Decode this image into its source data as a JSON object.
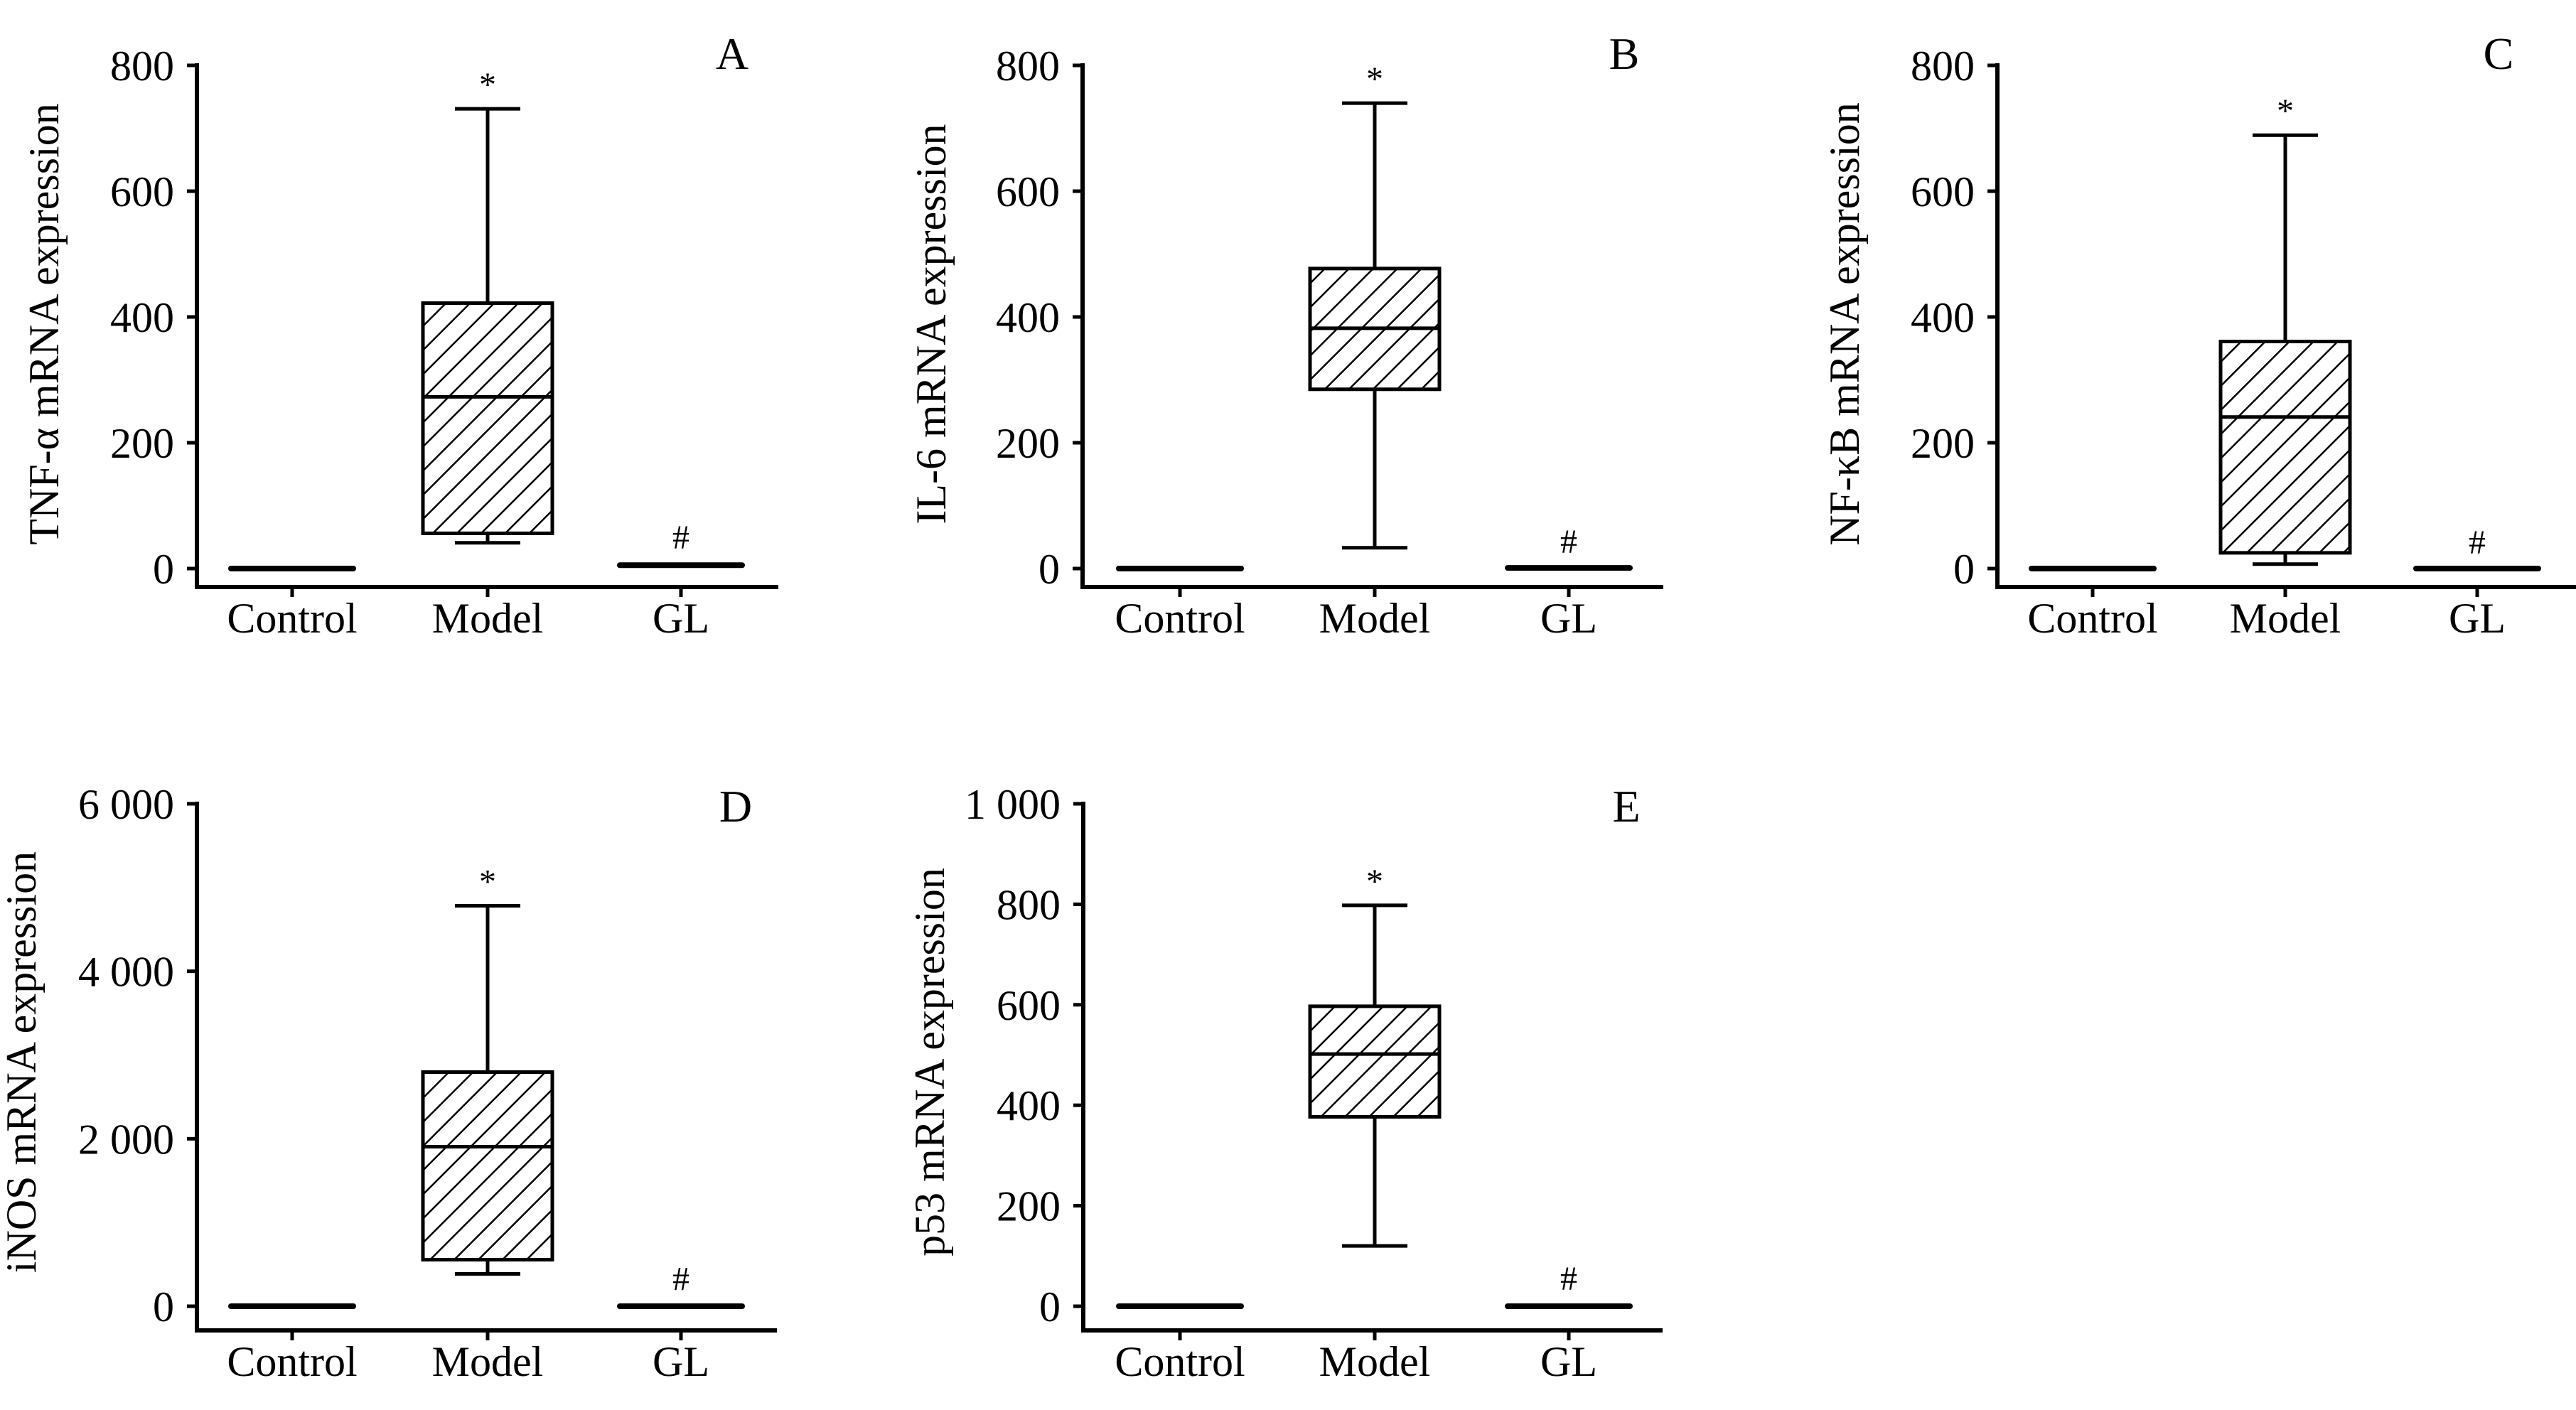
{
  "figure": {
    "colors": {
      "ink": "#000000",
      "background": "#ffffff"
    }
  },
  "chart_data": [
    {
      "type": "box",
      "panel": "A",
      "ylabel": "TNF-α mRNA expression",
      "xlabel": "",
      "categories": [
        "Control",
        "Model",
        "GL"
      ],
      "ylim": [
        0,
        800
      ],
      "yticks": [
        0,
        200,
        400,
        600,
        800
      ],
      "ytick_labels": [
        "0",
        "200",
        "400",
        "600",
        "800"
      ],
      "grid": false,
      "boxes": [
        {
          "category": "Control",
          "min": 0,
          "q1": 0,
          "median": 0,
          "q3": 1,
          "max": 1,
          "pattern": "none",
          "annotation": ""
        },
        {
          "category": "Model",
          "min": 41,
          "q1": 56,
          "median": 273,
          "q3": 422,
          "max": 731,
          "pattern": "hatched",
          "annotation": "*"
        },
        {
          "category": "GL",
          "min": 0,
          "q1": 2,
          "median": 5,
          "q3": 9,
          "max": 9,
          "pattern": "none",
          "annotation": "#"
        }
      ]
    },
    {
      "type": "box",
      "panel": "B",
      "ylabel": "IL-6 mRNA expression",
      "xlabel": "",
      "categories": [
        "Control",
        "Model",
        "GL"
      ],
      "ylim": [
        0,
        800
      ],
      "yticks": [
        0,
        200,
        400,
        600,
        800
      ],
      "ytick_labels": [
        "0",
        "200",
        "400",
        "600",
        "800"
      ],
      "grid": false,
      "boxes": [
        {
          "category": "Control",
          "min": 0,
          "q1": 0,
          "median": 0,
          "q3": 1,
          "max": 1,
          "pattern": "none",
          "annotation": ""
        },
        {
          "category": "Model",
          "min": 33,
          "q1": 285,
          "median": 382,
          "q3": 477,
          "max": 740,
          "pattern": "hatched",
          "annotation": "*"
        },
        {
          "category": "GL",
          "min": 0,
          "q1": 0,
          "median": 1,
          "q3": 2,
          "max": 2,
          "pattern": "none",
          "annotation": "#"
        }
      ]
    },
    {
      "type": "box",
      "panel": "C",
      "ylabel": "NF-κB mRNA expression",
      "xlabel": "",
      "categories": [
        "Control",
        "Model",
        "GL"
      ],
      "ylim": [
        0,
        800
      ],
      "yticks": [
        0,
        200,
        400,
        600,
        800
      ],
      "ytick_labels": [
        "0",
        "200",
        "400",
        "600",
        "800"
      ],
      "grid": false,
      "boxes": [
        {
          "category": "Control",
          "min": 0,
          "q1": 0,
          "median": 0,
          "q3": 1,
          "max": 1,
          "pattern": "none",
          "annotation": ""
        },
        {
          "category": "Model",
          "min": 7,
          "q1": 25,
          "median": 241,
          "q3": 361,
          "max": 689,
          "pattern": "hatched",
          "annotation": "*"
        },
        {
          "category": "GL",
          "min": 0,
          "q1": 0,
          "median": 0,
          "q3": 1,
          "max": 1,
          "pattern": "none",
          "annotation": "#"
        }
      ]
    },
    {
      "type": "box",
      "panel": "D",
      "ylabel": "iNOS mRNA expression",
      "xlabel": "",
      "categories": [
        "Control",
        "Model",
        "GL"
      ],
      "ylim": [
        0,
        6000
      ],
      "yticks": [
        0,
        2000,
        4000,
        6000
      ],
      "ytick_labels": [
        "0",
        "2 000",
        "4 000",
        "6 000"
      ],
      "grid": false,
      "boxes": [
        {
          "category": "Control",
          "min": 0,
          "q1": 0,
          "median": 0,
          "q3": 20,
          "max": 20,
          "pattern": "none",
          "annotation": ""
        },
        {
          "category": "Model",
          "min": 386,
          "q1": 556,
          "median": 1905,
          "q3": 2796,
          "max": 4782,
          "pattern": "hatched",
          "annotation": "*"
        },
        {
          "category": "GL",
          "min": 0,
          "q1": 0,
          "median": 0,
          "q3": 20,
          "max": 20,
          "pattern": "none",
          "annotation": "#"
        }
      ]
    },
    {
      "type": "box",
      "panel": "E",
      "ylabel": "p53 mRNA expression",
      "xlabel": "",
      "categories": [
        "Control",
        "Model",
        "GL"
      ],
      "ylim": [
        0,
        1000
      ],
      "yticks": [
        0,
        200,
        400,
        600,
        800,
        1000
      ],
      "ytick_labels": [
        "0",
        "200",
        "400",
        "600",
        "800",
        "1 000"
      ],
      "grid": false,
      "boxes": [
        {
          "category": "Control",
          "min": 0,
          "q1": 0,
          "median": 0,
          "q3": 4,
          "max": 4,
          "pattern": "none",
          "annotation": ""
        },
        {
          "category": "Model",
          "min": 120,
          "q1": 377,
          "median": 502,
          "q3": 597,
          "max": 798,
          "pattern": "hatched",
          "annotation": "*"
        },
        {
          "category": "GL",
          "min": 0,
          "q1": 0,
          "median": 0,
          "q3": 4,
          "max": 4,
          "pattern": "none",
          "annotation": "#"
        }
      ]
    }
  ]
}
